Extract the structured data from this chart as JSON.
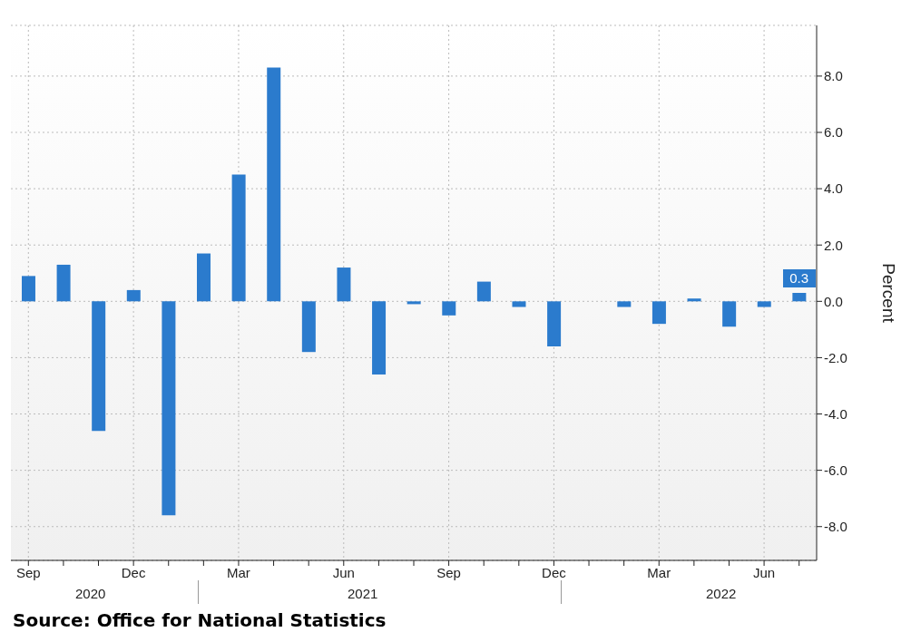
{
  "chart_data": {
    "type": "bar",
    "ylabel": "Percent",
    "categories": [
      "Sep",
      null,
      null,
      "Dec",
      null,
      null,
      "Mar",
      null,
      null,
      "Jun",
      null,
      null,
      "Sep",
      null,
      null,
      "Dec",
      null,
      null,
      "Mar",
      null,
      null,
      "Jun",
      null
    ],
    "values": [
      0.9,
      1.3,
      -4.6,
      0.4,
      -7.6,
      1.7,
      4.5,
      8.3,
      -1.8,
      1.2,
      -2.6,
      -0.1,
      -0.5,
      0.7,
      -0.2,
      -1.6,
      0.0,
      -0.2,
      -0.8,
      0.1,
      -0.9,
      -0.2,
      0.3
    ],
    "value_labels": [
      null,
      null,
      null,
      null,
      null,
      null,
      null,
      null,
      null,
      null,
      null,
      null,
      null,
      null,
      null,
      null,
      null,
      null,
      null,
      null,
      null,
      null,
      "0.3"
    ],
    "color": "#2b7bcd",
    "ylim": [
      -9.2,
      9.8
    ],
    "yticks": [
      {
        "value": -8,
        "label": "-8.0"
      },
      {
        "value": -6,
        "label": "-6.0"
      },
      {
        "value": -4,
        "label": "-4.0"
      },
      {
        "value": -2,
        "label": "-2.0"
      },
      {
        "value": 0,
        "label": "0.0"
      },
      {
        "value": 2,
        "label": "2.0"
      },
      {
        "value": 4,
        "label": "4.0"
      },
      {
        "value": 6,
        "label": "6.0"
      },
      {
        "value": 8,
        "label": "8.0"
      }
    ],
    "grid": true,
    "annotations": [
      "2020",
      "2021",
      "2022",
      "Source: Office for National Statistics"
    ]
  }
}
